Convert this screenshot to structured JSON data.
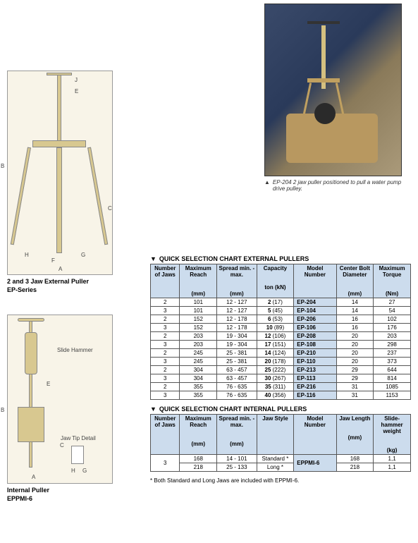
{
  "photo": {
    "caption": "EP-204 2 jaw puller positioned to pull a water pump drive pulley.",
    "triangle": "▲"
  },
  "diagram1": {
    "title": "2 and 3 Jaw External Puller",
    "subtitle": "EP-Series",
    "callouts": {
      "B": "B",
      "J": "J",
      "E": "E",
      "C": "C",
      "H": "H",
      "F": "F",
      "G": "G",
      "A": "A"
    }
  },
  "diagram2": {
    "title": "Internal Puller",
    "subtitle": "EPPMI-6",
    "slide_hammer": "Slide Hammer",
    "jaw_tip_detail": "Jaw Tip Detail",
    "callouts": {
      "B": "B",
      "E": "E",
      "C": "C",
      "A": "A",
      "H": "H",
      "G": "G"
    }
  },
  "table_external": {
    "triangle": "▼",
    "title": "QUICK SELECTION CHART EXTERNAL PULLERS",
    "columns": [
      "Number of Jaws",
      "Maximum Reach",
      "Spread min. - max.",
      "Capacity",
      "Model Number",
      "Center Bolt Diameter",
      "Maximum Torque"
    ],
    "units": [
      "",
      "(mm)",
      "(mm)",
      "ton (kN)",
      "",
      "(mm)",
      "(Nm)"
    ],
    "col_widths": [
      "11%",
      "14%",
      "15%",
      "14%",
      "16%",
      "14%",
      "14%"
    ],
    "header_bg": "#ccdced",
    "model_bg": "#ccdced",
    "rows": [
      [
        "2",
        "101",
        "12 - 127",
        "2 (17)",
        "EP-204",
        "14",
        "27"
      ],
      [
        "3",
        "101",
        "12 - 127",
        "5 (45)",
        "EP-104",
        "14",
        "54"
      ],
      [
        "2",
        "152",
        "12 - 178",
        "6 (53)",
        "EP-206",
        "16",
        "102"
      ],
      [
        "3",
        "152",
        "12 - 178",
        "10 (89)",
        "EP-106",
        "16",
        "176"
      ],
      [
        "2",
        "203",
        "19 - 304",
        "12 (106)",
        "EP-208",
        "20",
        "203"
      ],
      [
        "3",
        "203",
        "19 - 304",
        "17 (151)",
        "EP-108",
        "20",
        "298"
      ],
      [
        "2",
        "245",
        "25 - 381",
        "14 (124)",
        "EP-210",
        "20",
        "237"
      ],
      [
        "3",
        "245",
        "25 - 381",
        "20 (178)",
        "EP-110",
        "20",
        "373"
      ],
      [
        "2",
        "304",
        "63 - 457",
        "25 (222)",
        "EP-213",
        "29",
        "644"
      ],
      [
        "3",
        "304",
        "63 - 457",
        "30 (267)",
        "EP-113",
        "29",
        "814"
      ],
      [
        "2",
        "355",
        "76 - 635",
        "35 (311)",
        "EP-216",
        "31",
        "1085"
      ],
      [
        "3",
        "355",
        "76 - 635",
        "40 (356)",
        "EP-116",
        "31",
        "1153"
      ]
    ]
  },
  "table_internal": {
    "triangle": "▼",
    "title": "QUICK SELECTION CHART INTERNAL PULLERS",
    "columns": [
      "Number of Jaws",
      "Maximum Reach",
      "Spread min. - max.",
      "Jaw Style",
      "Model Number",
      "Jaw Length",
      "Slide-hammer weight"
    ],
    "units": [
      "",
      "(mm)",
      "(mm)",
      "",
      "",
      "(mm)",
      "(kg)"
    ],
    "rows": [
      {
        "jaws": "3",
        "reach": "168",
        "spread": "14 - 101",
        "style": "Standard *",
        "model": "EPPMI-6",
        "length": "168",
        "weight": "1,1"
      },
      {
        "jaws": "",
        "reach": "218",
        "spread": "25 - 133",
        "style": "Long *",
        "model": "",
        "length": "218",
        "weight": "1,1"
      }
    ],
    "footnote": "*   Both Standard and Long Jaws are included with EPPMI-6."
  }
}
